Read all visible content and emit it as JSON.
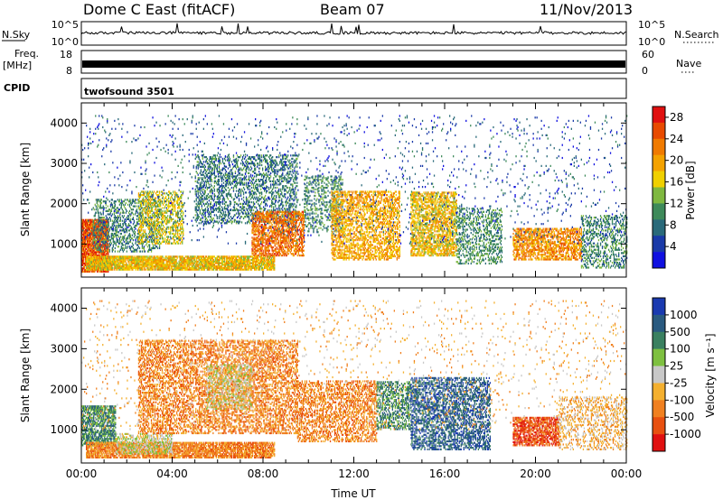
{
  "header": {
    "radar": "Dome C East (fitACF)",
    "beam": "Beam 07",
    "date": "11/Nov/2013"
  },
  "meta_panels": {
    "nsky_label": "N.Sky",
    "nsky_ticks": [
      "10^5",
      "10^0"
    ],
    "nsearch_label": "N.Search",
    "freq_label": "Freq.",
    "freq_unit": "[MHz]",
    "freq_ticks": [
      "18",
      "8"
    ],
    "nave_label": "Nave",
    "nave_ticks": [
      "60",
      "0"
    ],
    "cpid_label": "CPID",
    "cpid_value": "twofsound 3501"
  },
  "chart_data": [
    {
      "type": "heatmap",
      "name": "power",
      "xlabel": "Time UT",
      "ylabel": "Slant Range [km]",
      "x_range_hours": [
        0,
        24
      ],
      "y_range_km": [
        180,
        4500
      ],
      "y_ticks": [
        "1000",
        "2000",
        "3000",
        "4000"
      ],
      "colorbar": {
        "label": "Power [dB]",
        "ticks": [
          "4",
          "8",
          "12",
          "16",
          "20",
          "24",
          "28"
        ],
        "range": [
          0,
          30
        ],
        "colors": [
          "#1010e0",
          "#1a3aa8",
          "#2a6a7a",
          "#3e8a5a",
          "#7fb840",
          "#f0d000",
          "#f4a200",
          "#f07a00",
          "#e84a00",
          "#e01010"
        ]
      },
      "regions": [
        {
          "t0": 0.0,
          "t1": 1.2,
          "r0": 300,
          "r1": 1600,
          "level": 26,
          "density": 0.9
        },
        {
          "t0": 0.2,
          "t1": 8.5,
          "r0": 350,
          "r1": 700,
          "level": 18,
          "density": 0.85
        },
        {
          "t0": 0.5,
          "t1": 3.5,
          "r0": 800,
          "r1": 2100,
          "level": 9,
          "density": 0.35
        },
        {
          "t0": 2.5,
          "t1": 4.5,
          "r0": 1000,
          "r1": 2300,
          "level": 16,
          "density": 0.45
        },
        {
          "t0": 5.0,
          "t1": 9.5,
          "r0": 1500,
          "r1": 3200,
          "level": 8,
          "density": 0.35
        },
        {
          "t0": 7.5,
          "t1": 9.8,
          "r0": 700,
          "r1": 1800,
          "level": 24,
          "density": 0.6
        },
        {
          "t0": 9.8,
          "t1": 11.5,
          "r0": 1300,
          "r1": 2700,
          "level": 10,
          "density": 0.3
        },
        {
          "t0": 11.0,
          "t1": 14.0,
          "r0": 600,
          "r1": 2300,
          "level": 20,
          "density": 0.5
        },
        {
          "t0": 14.5,
          "t1": 16.5,
          "r0": 700,
          "r1": 2300,
          "level": 18,
          "density": 0.6
        },
        {
          "t0": 16.5,
          "t1": 18.5,
          "r0": 500,
          "r1": 1900,
          "level": 10,
          "density": 0.35
        },
        {
          "t0": 19.0,
          "t1": 22.0,
          "r0": 600,
          "r1": 1400,
          "level": 22,
          "density": 0.6
        },
        {
          "t0": 22.0,
          "t1": 24.0,
          "r0": 400,
          "r1": 1700,
          "level": 9,
          "density": 0.35
        },
        {
          "t0": 0.0,
          "t1": 24.0,
          "r0": 1000,
          "r1": 4200,
          "level": 5,
          "density": 0.03
        }
      ]
    },
    {
      "type": "heatmap",
      "name": "velocity",
      "xlabel": "Time UT",
      "ylabel": "Slant Range [km]",
      "x_range_hours": [
        0,
        24
      ],
      "x_ticks": [
        "00:00",
        "04:00",
        "08:00",
        "12:00",
        "16:00",
        "20:00",
        "00:00"
      ],
      "y_range_km": [
        180,
        4500
      ],
      "y_ticks": [
        "1000",
        "2000",
        "3000",
        "4000"
      ],
      "colorbar": {
        "label": "Velocity [m s⁻¹]",
        "ticks": [
          "1000",
          "500",
          "100",
          "25",
          "-25",
          "-100",
          "-500",
          "-1000"
        ],
        "colors": [
          "#1a3ab0",
          "#2a5a80",
          "#3a8060",
          "#7ec040",
          "#c8c8c8",
          "#f4b030",
          "#f08020",
          "#e85010",
          "#e01010"
        ]
      },
      "regions": [
        {
          "t0": 0.0,
          "t1": 1.5,
          "r0": 600,
          "r1": 1600,
          "level": 2,
          "density": 0.7
        },
        {
          "t0": 0.2,
          "t1": 8.5,
          "r0": 300,
          "r1": 700,
          "level": 6,
          "density": 0.8
        },
        {
          "t0": 1.5,
          "t1": 4.0,
          "r0": 400,
          "r1": 900,
          "level": 4,
          "density": 0.55
        },
        {
          "t0": 2.5,
          "t1": 9.5,
          "r0": 900,
          "r1": 3200,
          "level": 6,
          "density": 0.45
        },
        {
          "t0": 5.5,
          "t1": 7.5,
          "r0": 1500,
          "r1": 2600,
          "level": 4,
          "density": 0.4
        },
        {
          "t0": 9.5,
          "t1": 13.0,
          "r0": 700,
          "r1": 2200,
          "level": 6,
          "density": 0.45
        },
        {
          "t0": 13.0,
          "t1": 14.5,
          "r0": 1000,
          "r1": 2200,
          "level": 2,
          "density": 0.45
        },
        {
          "t0": 14.5,
          "t1": 18.0,
          "r0": 500,
          "r1": 2300,
          "level": 1,
          "density": 0.5
        },
        {
          "t0": 19.0,
          "t1": 21.0,
          "r0": 600,
          "r1": 1300,
          "level": 7,
          "density": 0.7
        },
        {
          "t0": 21.0,
          "t1": 24.0,
          "r0": 500,
          "r1": 1800,
          "level": 5,
          "density": 0.3
        },
        {
          "t0": 0.0,
          "t1": 24.0,
          "r0": 1000,
          "r1": 4200,
          "level": 5,
          "density": 0.03
        }
      ]
    }
  ]
}
